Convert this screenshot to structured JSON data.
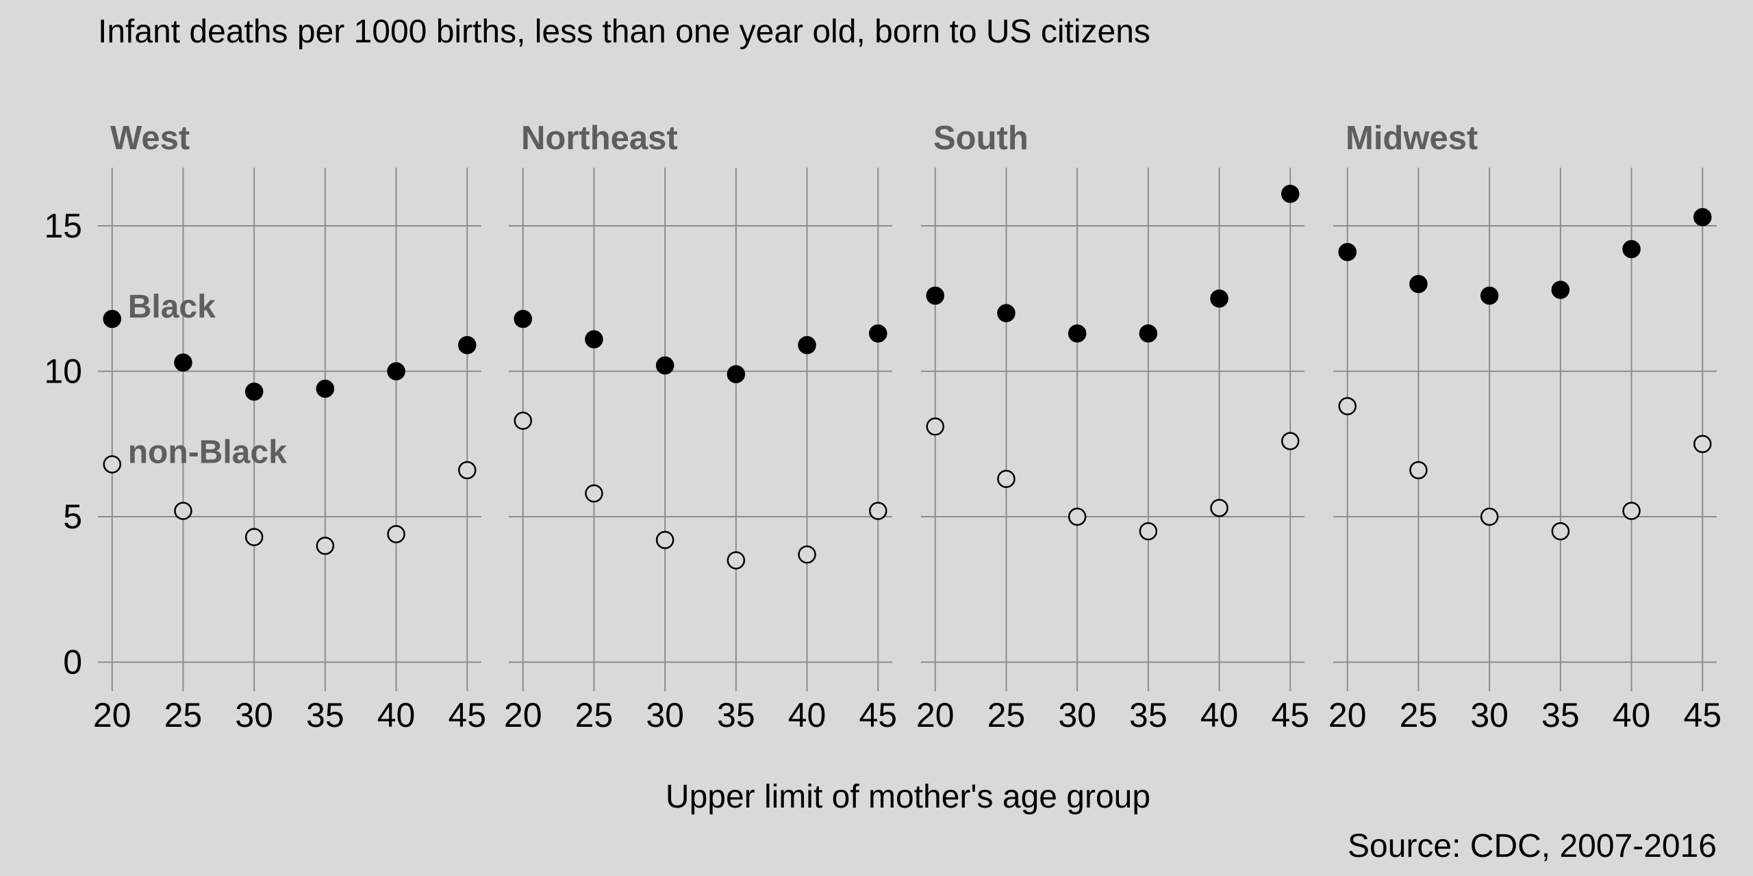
{
  "chart_data": {
    "type": "scatter",
    "title": "Infant deaths per 1000 births, less than one year old, born to US citizens",
    "xlabel": "Upper limit of mother's age group",
    "ylabel": "",
    "caption": "Source: CDC, 2007-2016",
    "x": [
      20,
      25,
      30,
      35,
      40,
      45
    ],
    "x_ticks": [
      "20",
      "25",
      "30",
      "35",
      "40",
      "45"
    ],
    "y_ticks": [
      "0",
      "5",
      "10",
      "15"
    ],
    "xlim": [
      19,
      46
    ],
    "ylim": [
      -1,
      17
    ],
    "grid": true,
    "legend": "direct labels in first panel",
    "series_labels": {
      "black": "Black",
      "non_black": "non-Black"
    },
    "colors": {
      "background": "#d9d9d9",
      "grid": "#8c8c8c",
      "black_fill": "#000000",
      "non_black_fill": "#d9d9d9",
      "facet_text": "#5e5e5e"
    },
    "panels": [
      {
        "name": "West",
        "series": [
          {
            "name": "Black",
            "values": [
              11.8,
              10.3,
              9.3,
              9.4,
              10.0,
              10.9
            ]
          },
          {
            "name": "non-Black",
            "values": [
              6.8,
              5.2,
              4.3,
              4.0,
              4.4,
              6.6
            ]
          }
        ]
      },
      {
        "name": "Northeast",
        "series": [
          {
            "name": "Black",
            "values": [
              11.8,
              11.1,
              10.2,
              9.9,
              10.9,
              11.3
            ]
          },
          {
            "name": "non-Black",
            "values": [
              8.3,
              5.8,
              4.2,
              3.5,
              3.7,
              5.2
            ]
          }
        ]
      },
      {
        "name": "South",
        "series": [
          {
            "name": "Black",
            "values": [
              12.6,
              12.0,
              11.3,
              11.3,
              12.5,
              16.1
            ]
          },
          {
            "name": "non-Black",
            "values": [
              8.1,
              6.3,
              5.0,
              4.5,
              5.3,
              7.6
            ]
          }
        ]
      },
      {
        "name": "Midwest",
        "series": [
          {
            "name": "Black",
            "values": [
              14.1,
              13.0,
              12.6,
              12.8,
              14.2,
              15.3
            ]
          },
          {
            "name": "non-Black",
            "values": [
              8.8,
              6.6,
              5.0,
              4.5,
              5.2,
              7.5
            ]
          }
        ]
      }
    ]
  }
}
